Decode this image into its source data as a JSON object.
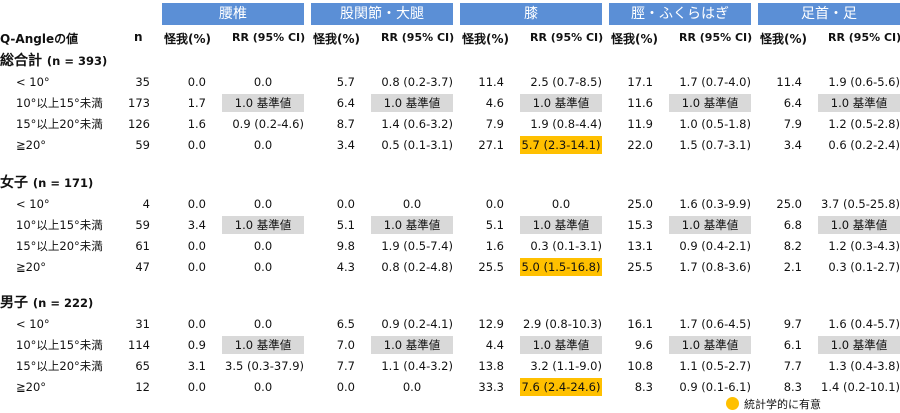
{
  "header": {
    "regions": [
      "腰椎",
      "股関節・大腿",
      "膝",
      "脛・ふくらはぎ",
      "足首・足"
    ],
    "row_label": "Q-Angleの値",
    "n_label": "n",
    "rate_label": "怪我(%)",
    "rr_label": "RR (95% CI)"
  },
  "groups": [
    {
      "name": "総合計",
      "n_note": "(n = 393)",
      "rows": [
        {
          "cat": "< 10°",
          "n": "35",
          "c": [
            "0.0",
            "0.0",
            "5.7",
            "0.8 (0.2-3.7)",
            "11.4",
            "2.5 (0.7-8.5)",
            "17.1",
            "1.7 (0.7-4.0)",
            "11.4",
            "1.9 (0.6-5.6)"
          ]
        },
        {
          "cat": "10°以上15°未満",
          "n": "173",
          "c": [
            "1.7",
            "1.0 基準値",
            "6.4",
            "1.0 基準値",
            "4.6",
            "1.0 基準値",
            "11.6",
            "1.0 基準値",
            "6.4",
            "1.0 基準値"
          ]
        },
        {
          "cat": "15°以上20°未満",
          "n": "126",
          "c": [
            "1.6",
            "0.9 (0.2-4.6)",
            "8.7",
            "1.4 (0.6-3.2)",
            "7.9",
            "1.9 (0.8-4.4)",
            "11.9",
            "1.0 (0.5-1.8)",
            "7.9",
            "1.2 (0.5-2.8)"
          ]
        },
        {
          "cat": "≧20°",
          "n": "59",
          "c": [
            "0.0",
            "0.0",
            "3.4",
            "0.5 (0.1-3.1)",
            "27.1",
            "5.7 (2.3-14.1)",
            "22.0",
            "1.5 (0.7-3.1)",
            "3.4",
            "0.6 (0.2-2.4)"
          ]
        }
      ]
    },
    {
      "name": "女子",
      "n_note": "(n = 171)",
      "rows": [
        {
          "cat": "< 10°",
          "n": "4",
          "c": [
            "0.0",
            "0.0",
            "0.0",
            "0.0",
            "0.0",
            "0.0",
            "25.0",
            "1.6 (0.3-9.9)",
            "25.0",
            "3.7 (0.5-25.8)"
          ]
        },
        {
          "cat": "10°以上15°未満",
          "n": "59",
          "c": [
            "3.4",
            "1.0 基準値",
            "5.1",
            "1.0 基準値",
            "5.1",
            "1.0 基準値",
            "15.3",
            "1.0 基準値",
            "6.8",
            "1.0 基準値"
          ]
        },
        {
          "cat": "15°以上20°未満",
          "n": "61",
          "c": [
            "0.0",
            "0.0",
            "9.8",
            "1.9 (0.5-7.4)",
            "1.6",
            "0.3 (0.1-3.1)",
            "13.1",
            "0.9 (0.4-2.1)",
            "8.2",
            "1.2 (0.3-4.3)"
          ]
        },
        {
          "cat": "≧20°",
          "n": "47",
          "c": [
            "0.0",
            "0.0",
            "4.3",
            "0.8 (0.2-4.8)",
            "25.5",
            "5.0 (1.5-16.8)",
            "25.5",
            "1.7 (0.8-3.6)",
            "2.1",
            "0.3 (0.1-2.7)"
          ]
        }
      ]
    },
    {
      "name": "男子",
      "n_note": "(n = 222)",
      "rows": [
        {
          "cat": "< 10°",
          "n": "31",
          "c": [
            "0.0",
            "0.0",
            "6.5",
            "0.9 (0.2-4.1)",
            "12.9",
            "2.9 (0.8-10.3)",
            "16.1",
            "1.7 (0.6-4.5)",
            "9.7",
            "1.6 (0.4-5.7)"
          ]
        },
        {
          "cat": "10°以上15°未満",
          "n": "114",
          "c": [
            "0.9",
            "1.0 基準値",
            "7.0",
            "1.0 基準値",
            "4.4",
            "1.0 基準値",
            "9.6",
            "1.0 基準値",
            "6.1",
            "1.0 基準値"
          ]
        },
        {
          "cat": "15°以上20°未満",
          "n": "65",
          "c": [
            "3.1",
            "3.5 (0.3-37.9)",
            "7.7",
            "1.1 (0.4-3.2)",
            "13.8",
            "3.2 (1.1-9.0)",
            "10.8",
            "1.1 (0.5-2.7)",
            "7.7",
            "1.3 (0.4-3.8)"
          ]
        },
        {
          "cat": "≧20°",
          "n": "12",
          "n_pad": "",
          "c": [
            "0.0",
            "0.0",
            "0.0",
            "0.0",
            "33.3",
            "7.6 (2.4-24.6)",
            "8.3",
            "0.9 (0.1-6.1)",
            "8.3",
            "1.4 (0.2-10.1)"
          ]
        }
      ]
    }
  ],
  "legend": {
    "label": "統計学的に有意"
  },
  "colors": {
    "header_bg": "#5b8fd6",
    "reference_bg": "#d9d9d9",
    "significant_bg": "#ffc000"
  }
}
